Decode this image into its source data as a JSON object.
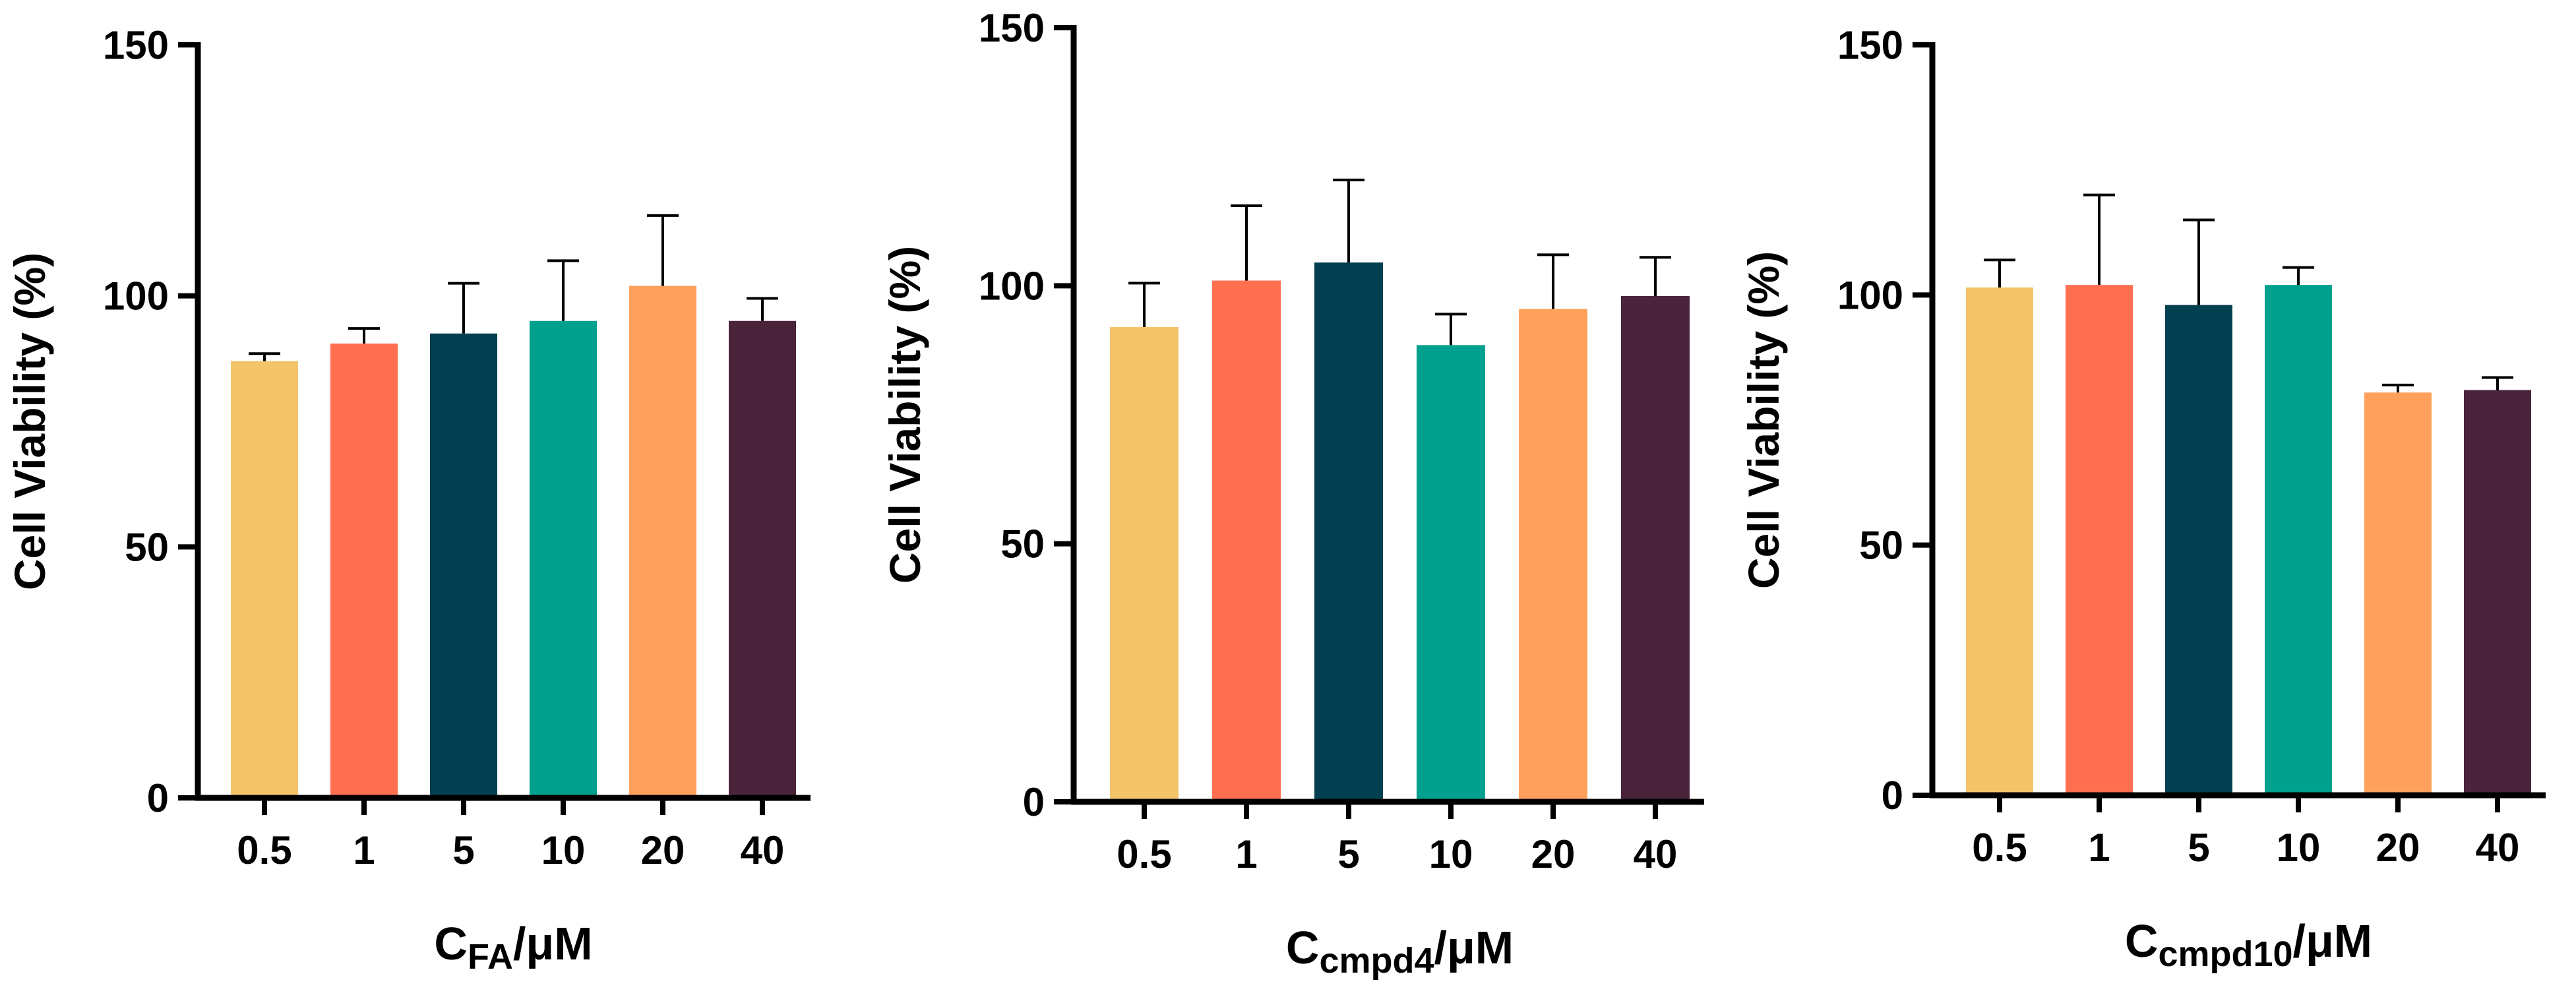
{
  "chart_data": [
    {
      "type": "bar",
      "title": "",
      "ylabel": "Cell Viability (%)",
      "xlabel_main": "C",
      "xlabel_sub": "FA",
      "xlabel_unit": "/μM",
      "categories": [
        "0.5",
        "1",
        "5",
        "10",
        "20",
        "40"
      ],
      "values": [
        87,
        90.5,
        92.5,
        95,
        102,
        95
      ],
      "errors": [
        1.5,
        3,
        10,
        12,
        14,
        4.5
      ],
      "ylim": [
        0,
        150
      ],
      "yticks": [
        "0",
        "50",
        "100",
        "150"
      ]
    },
    {
      "type": "bar",
      "title": "",
      "ylabel": "Cell Viability (%)",
      "xlabel_main": "C",
      "xlabel_sub": "cmpd4",
      "xlabel_unit": "/μM",
      "categories": [
        "0.5",
        "1",
        "5",
        "10",
        "20",
        "40"
      ],
      "values": [
        92,
        101,
        104.5,
        88.5,
        95.5,
        98
      ],
      "errors": [
        8.5,
        14.5,
        16,
        6,
        10.5,
        7.5
      ],
      "ylim": [
        0,
        150
      ],
      "yticks": [
        "0",
        "50",
        "100",
        "150"
      ]
    },
    {
      "type": "bar",
      "title": "",
      "ylabel": "Cell Viability (%)",
      "xlabel_main": "C",
      "xlabel_sub": "cmpd10",
      "xlabel_unit": "/μM",
      "categories": [
        "0.5",
        "1",
        "5",
        "10",
        "20",
        "40"
      ],
      "values": [
        101.5,
        102,
        98,
        102,
        80.5,
        81
      ],
      "errors": [
        5.5,
        18,
        17,
        3.5,
        1.5,
        2.5
      ],
      "ylim": [
        0,
        150
      ],
      "yticks": [
        "0",
        "50",
        "100",
        "150"
      ]
    }
  ],
  "bar_colors": [
    "#F4C46A",
    "#FF6F50",
    "#024051",
    "#00A08E",
    "#FFA15C",
    "#4A243A"
  ]
}
